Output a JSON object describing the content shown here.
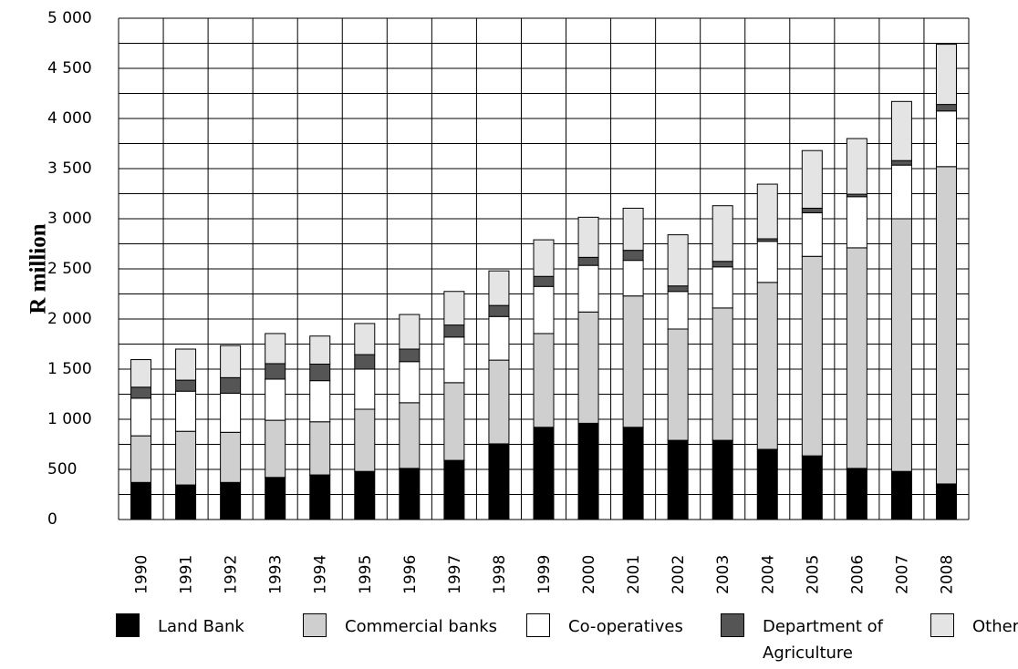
{
  "chart_data": {
    "type": "stacked_bar",
    "y_label": "R million",
    "categories": [
      "1990",
      "1991",
      "1992",
      "1993",
      "1994",
      "1995",
      "1996",
      "1997",
      "1998",
      "1999",
      "2000",
      "2001",
      "2002",
      "2003",
      "2004",
      "2005",
      "2006",
      "2007",
      "2008"
    ],
    "series": [
      {
        "name": "Land Bank",
        "color": "#000000",
        "values": [
          370,
          345,
          370,
          420,
          445,
          480,
          510,
          590,
          755,
          920,
          960,
          920,
          790,
          790,
          700,
          635,
          510,
          480,
          355
        ]
      },
      {
        "name": "Commercial banks",
        "color": "#cfcfcf",
        "values": [
          465,
          535,
          500,
          570,
          530,
          620,
          655,
          775,
          835,
          935,
          1110,
          1310,
          1110,
          1320,
          1665,
          1990,
          2200,
          2520,
          3165
        ]
      },
      {
        "name": "Co-operatives",
        "color": "#ffffff",
        "values": [
          375,
          400,
          390,
          410,
          410,
          400,
          410,
          455,
          435,
          470,
          465,
          355,
          375,
          410,
          410,
          435,
          510,
          535,
          555
        ]
      },
      {
        "name": "Department of Agriculture",
        "color": "#555555",
        "values": [
          110,
          110,
          155,
          155,
          165,
          145,
          125,
          120,
          110,
          100,
          80,
          100,
          55,
          55,
          25,
          45,
          25,
          45,
          65
        ]
      },
      {
        "name": "Other",
        "color": "#e4e4e4",
        "values": [
          275,
          310,
          320,
          300,
          280,
          310,
          345,
          335,
          345,
          365,
          400,
          420,
          510,
          555,
          545,
          575,
          555,
          590,
          600
        ]
      }
    ],
    "ylim": [
      0,
      5000
    ],
    "yticks": [
      0,
      500,
      {
        "value": 1000,
        "label": "1 000"
      },
      {
        "value": 1500,
        "label": "1 500"
      },
      {
        "value": 2000,
        "label": "2 000"
      },
      {
        "value": 2500,
        "label": "2 500"
      },
      {
        "value": 3000,
        "label": "3 000"
      },
      {
        "value": 3500,
        "label": "3 500"
      },
      {
        "value": 4000,
        "label": "4 000"
      },
      {
        "value": 4500,
        "label": "4 500"
      },
      {
        "value": 5000,
        "label": "5 000"
      }
    ],
    "y_minor_ticks": [
      250,
      750,
      1250,
      1750,
      2250,
      2750,
      3250,
      3750,
      4250,
      4750
    ],
    "grid": true
  }
}
